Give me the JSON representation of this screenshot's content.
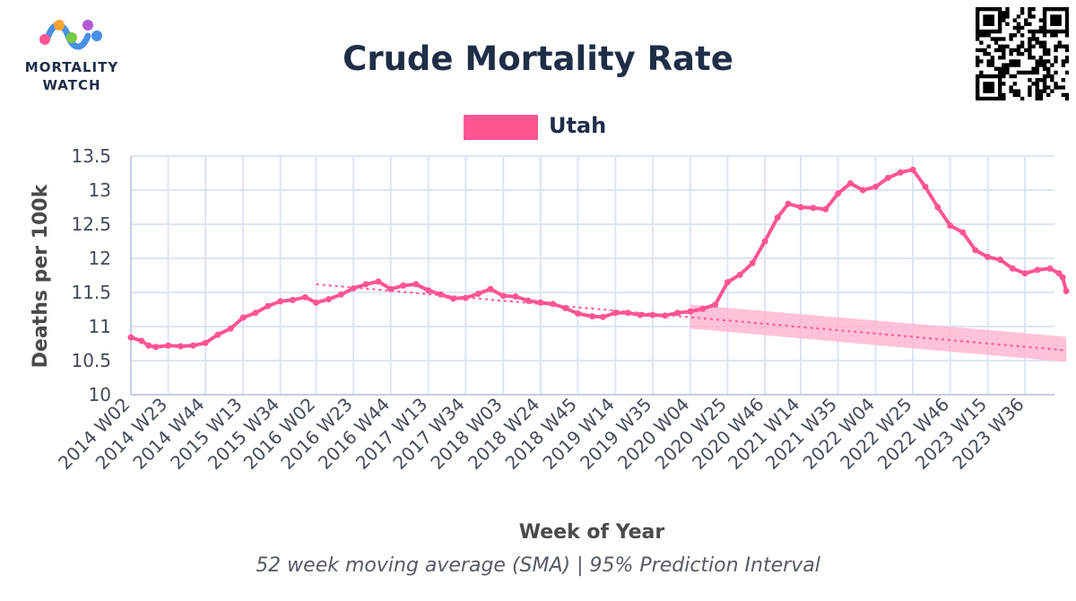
{
  "logo": {
    "line1": "MORTALITY",
    "line2": "WATCH"
  },
  "colors": {
    "series": "#ff5593",
    "band": "#ffb3d0",
    "title": "#1f2d47",
    "grid": "#dde4f5",
    "axis_text": "#444b5a",
    "axis_title": "#4a4a4a"
  },
  "chart_data": {
    "type": "line",
    "title": "Crude Mortality Rate",
    "subtitle": "52 week moving average (SMA) | 95% Prediction Interval",
    "xlabel": "Week of Year",
    "ylabel": "Deaths per 100k",
    "ylim": [
      10,
      13.5
    ],
    "yticks": [
      10,
      10.5,
      11,
      11.5,
      12,
      12.5,
      13,
      13.5
    ],
    "grid": true,
    "legend": {
      "position": "top-center",
      "entries": [
        "Utah"
      ]
    },
    "x_start_week": "2014 W02",
    "x_end_week": "2024 W07",
    "x_tick_labels": [
      "2014 W02",
      "2014 W23",
      "2014 W44",
      "2015 W13",
      "2015 W34",
      "2016 W02",
      "2016 W23",
      "2016 W44",
      "2017 W13",
      "2017 W34",
      "2018 W03",
      "2018 W24",
      "2018 W45",
      "2019 W14",
      "2019 W35",
      "2020 W04",
      "2020 W25",
      "2020 W46",
      "2021 W14",
      "2021 W35",
      "2022 W04",
      "2022 W25",
      "2022 W46",
      "2023 W15",
      "2023 W36"
    ],
    "series": [
      {
        "name": "Utah",
        "points": [
          [
            "2014 W02",
            10.84
          ],
          [
            "2014 W08",
            10.79
          ],
          [
            "2014 W12",
            10.72
          ],
          [
            "2014 W16",
            10.7
          ],
          [
            "2014 W23",
            10.72
          ],
          [
            "2014 W30",
            10.71
          ],
          [
            "2014 W37",
            10.72
          ],
          [
            "2014 W44",
            10.76
          ],
          [
            "2014 W51",
            10.88
          ],
          [
            "2015 W06",
            10.97
          ],
          [
            "2015 W13",
            11.13
          ],
          [
            "2015 W20",
            11.2
          ],
          [
            "2015 W27",
            11.3
          ],
          [
            "2015 W34",
            11.37
          ],
          [
            "2015 W41",
            11.39
          ],
          [
            "2015 W48",
            11.43
          ],
          [
            "2016 W02",
            11.35
          ],
          [
            "2016 W09",
            11.4
          ],
          [
            "2016 W16",
            11.47
          ],
          [
            "2016 W23",
            11.56
          ],
          [
            "2016 W30",
            11.62
          ],
          [
            "2016 W37",
            11.66
          ],
          [
            "2016 W44",
            11.55
          ],
          [
            "2016 W51",
            11.6
          ],
          [
            "2017 W06",
            11.62
          ],
          [
            "2017 W13",
            11.53
          ],
          [
            "2017 W20",
            11.47
          ],
          [
            "2017 W27",
            11.41
          ],
          [
            "2017 W34",
            11.42
          ],
          [
            "2017 W41",
            11.48
          ],
          [
            "2017 W48",
            11.55
          ],
          [
            "2018 W03",
            11.45
          ],
          [
            "2018 W10",
            11.44
          ],
          [
            "2018 W17",
            11.38
          ],
          [
            "2018 W24",
            11.35
          ],
          [
            "2018 W31",
            11.33
          ],
          [
            "2018 W38",
            11.27
          ],
          [
            "2018 W45",
            11.19
          ],
          [
            "2019 W01",
            11.15
          ],
          [
            "2019 W07",
            11.14
          ],
          [
            "2019 W14",
            11.2
          ],
          [
            "2019 W21",
            11.2
          ],
          [
            "2019 W28",
            11.17
          ],
          [
            "2019 W35",
            11.17
          ],
          [
            "2019 W42",
            11.16
          ],
          [
            "2019 W49",
            11.2
          ],
          [
            "2020 W04",
            11.22
          ],
          [
            "2020 W11",
            11.26
          ],
          [
            "2020 W18",
            11.32
          ],
          [
            "2020 W25",
            11.65
          ],
          [
            "2020 W32",
            11.76
          ],
          [
            "2020 W39",
            11.93
          ],
          [
            "2020 W46",
            12.25
          ],
          [
            "2021 W01",
            12.6
          ],
          [
            "2021 W07",
            12.8
          ],
          [
            "2021 W14",
            12.75
          ],
          [
            "2021 W21",
            12.74
          ],
          [
            "2021 W28",
            12.72
          ],
          [
            "2021 W35",
            12.95
          ],
          [
            "2021 W42",
            13.1
          ],
          [
            "2021 W49",
            13.0
          ],
          [
            "2022 W04",
            13.05
          ],
          [
            "2022 W11",
            13.18
          ],
          [
            "2022 W18",
            13.26
          ],
          [
            "2022 W25",
            13.3
          ],
          [
            "2022 W32",
            13.05
          ],
          [
            "2022 W39",
            12.75
          ],
          [
            "2022 W46",
            12.48
          ],
          [
            "2023 W01",
            12.38
          ],
          [
            "2023 W08",
            12.12
          ],
          [
            "2023 W15",
            12.02
          ],
          [
            "2023 W22",
            11.98
          ],
          [
            "2023 W29",
            11.85
          ],
          [
            "2023 W36",
            11.78
          ],
          [
            "2023 W43",
            11.83
          ],
          [
            "2023 W50",
            11.85
          ],
          [
            "2024 W03",
            11.78
          ],
          [
            "2024 W05",
            11.72
          ],
          [
            "2024 W07",
            11.52
          ]
        ]
      },
      {
        "name": "Baseline",
        "style": "dotted",
        "points": [
          [
            "2016 W02",
            11.62
          ],
          [
            "2024 W07",
            10.65
          ]
        ]
      },
      {
        "name": "95% Prediction Interval",
        "type": "band",
        "points_lower": [
          [
            "2020 W04",
            10.97
          ],
          [
            "2024 W07",
            10.48
          ]
        ],
        "points_upper": [
          [
            "2020 W04",
            11.32
          ],
          [
            "2024 W07",
            10.85
          ]
        ]
      }
    ]
  }
}
